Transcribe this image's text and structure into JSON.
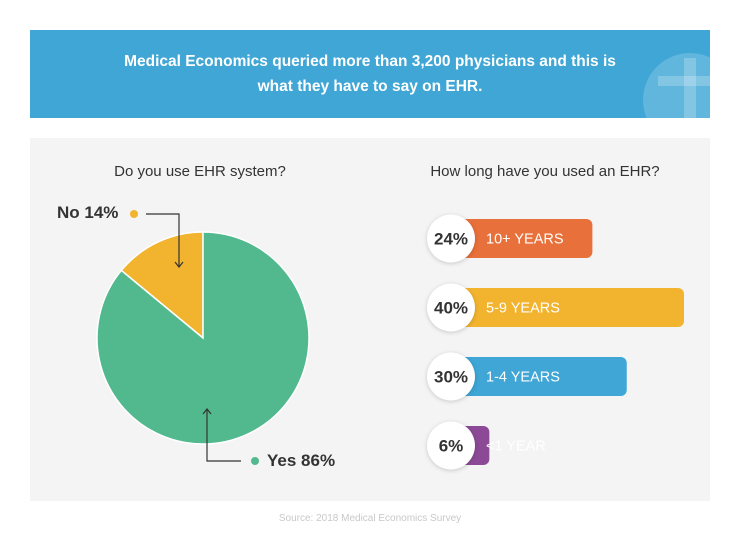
{
  "banner": {
    "text": "Medical Economics queried more than 3,200 physicians and this is what they have to say on EHR."
  },
  "colors": {
    "banner": "#3fa6d6",
    "panel": "#f4f4f4",
    "green": "#52b98f",
    "yellow": "#f2b32e",
    "orange": "#e8703a",
    "blue": "#3fa6d6",
    "purple": "#8c4a96"
  },
  "chart_data": [
    {
      "type": "pie",
      "title": "Do you use EHR system?",
      "slices": [
        {
          "label": "No",
          "value": 14,
          "display": "No 14%",
          "color": "#f2b32e"
        },
        {
          "label": "Yes",
          "value": 86,
          "display": "Yes 86%",
          "color": "#52b98f"
        }
      ]
    },
    {
      "type": "bar",
      "orientation": "horizontal",
      "title": "How long have you used an EHR?",
      "categories": [
        "10+ YEARS",
        "5-9 YEARS",
        "1-4 YEARS",
        "<1 YEAR"
      ],
      "values": [
        24,
        40,
        30,
        6
      ],
      "value_labels": [
        "24%",
        "40%",
        "30%",
        "6%"
      ],
      "colors": [
        "#e8703a",
        "#f2b32e",
        "#3fa6d6",
        "#8c4a96"
      ]
    }
  ],
  "footer": {
    "source": "Source: 2018 Medical Economics Survey"
  }
}
